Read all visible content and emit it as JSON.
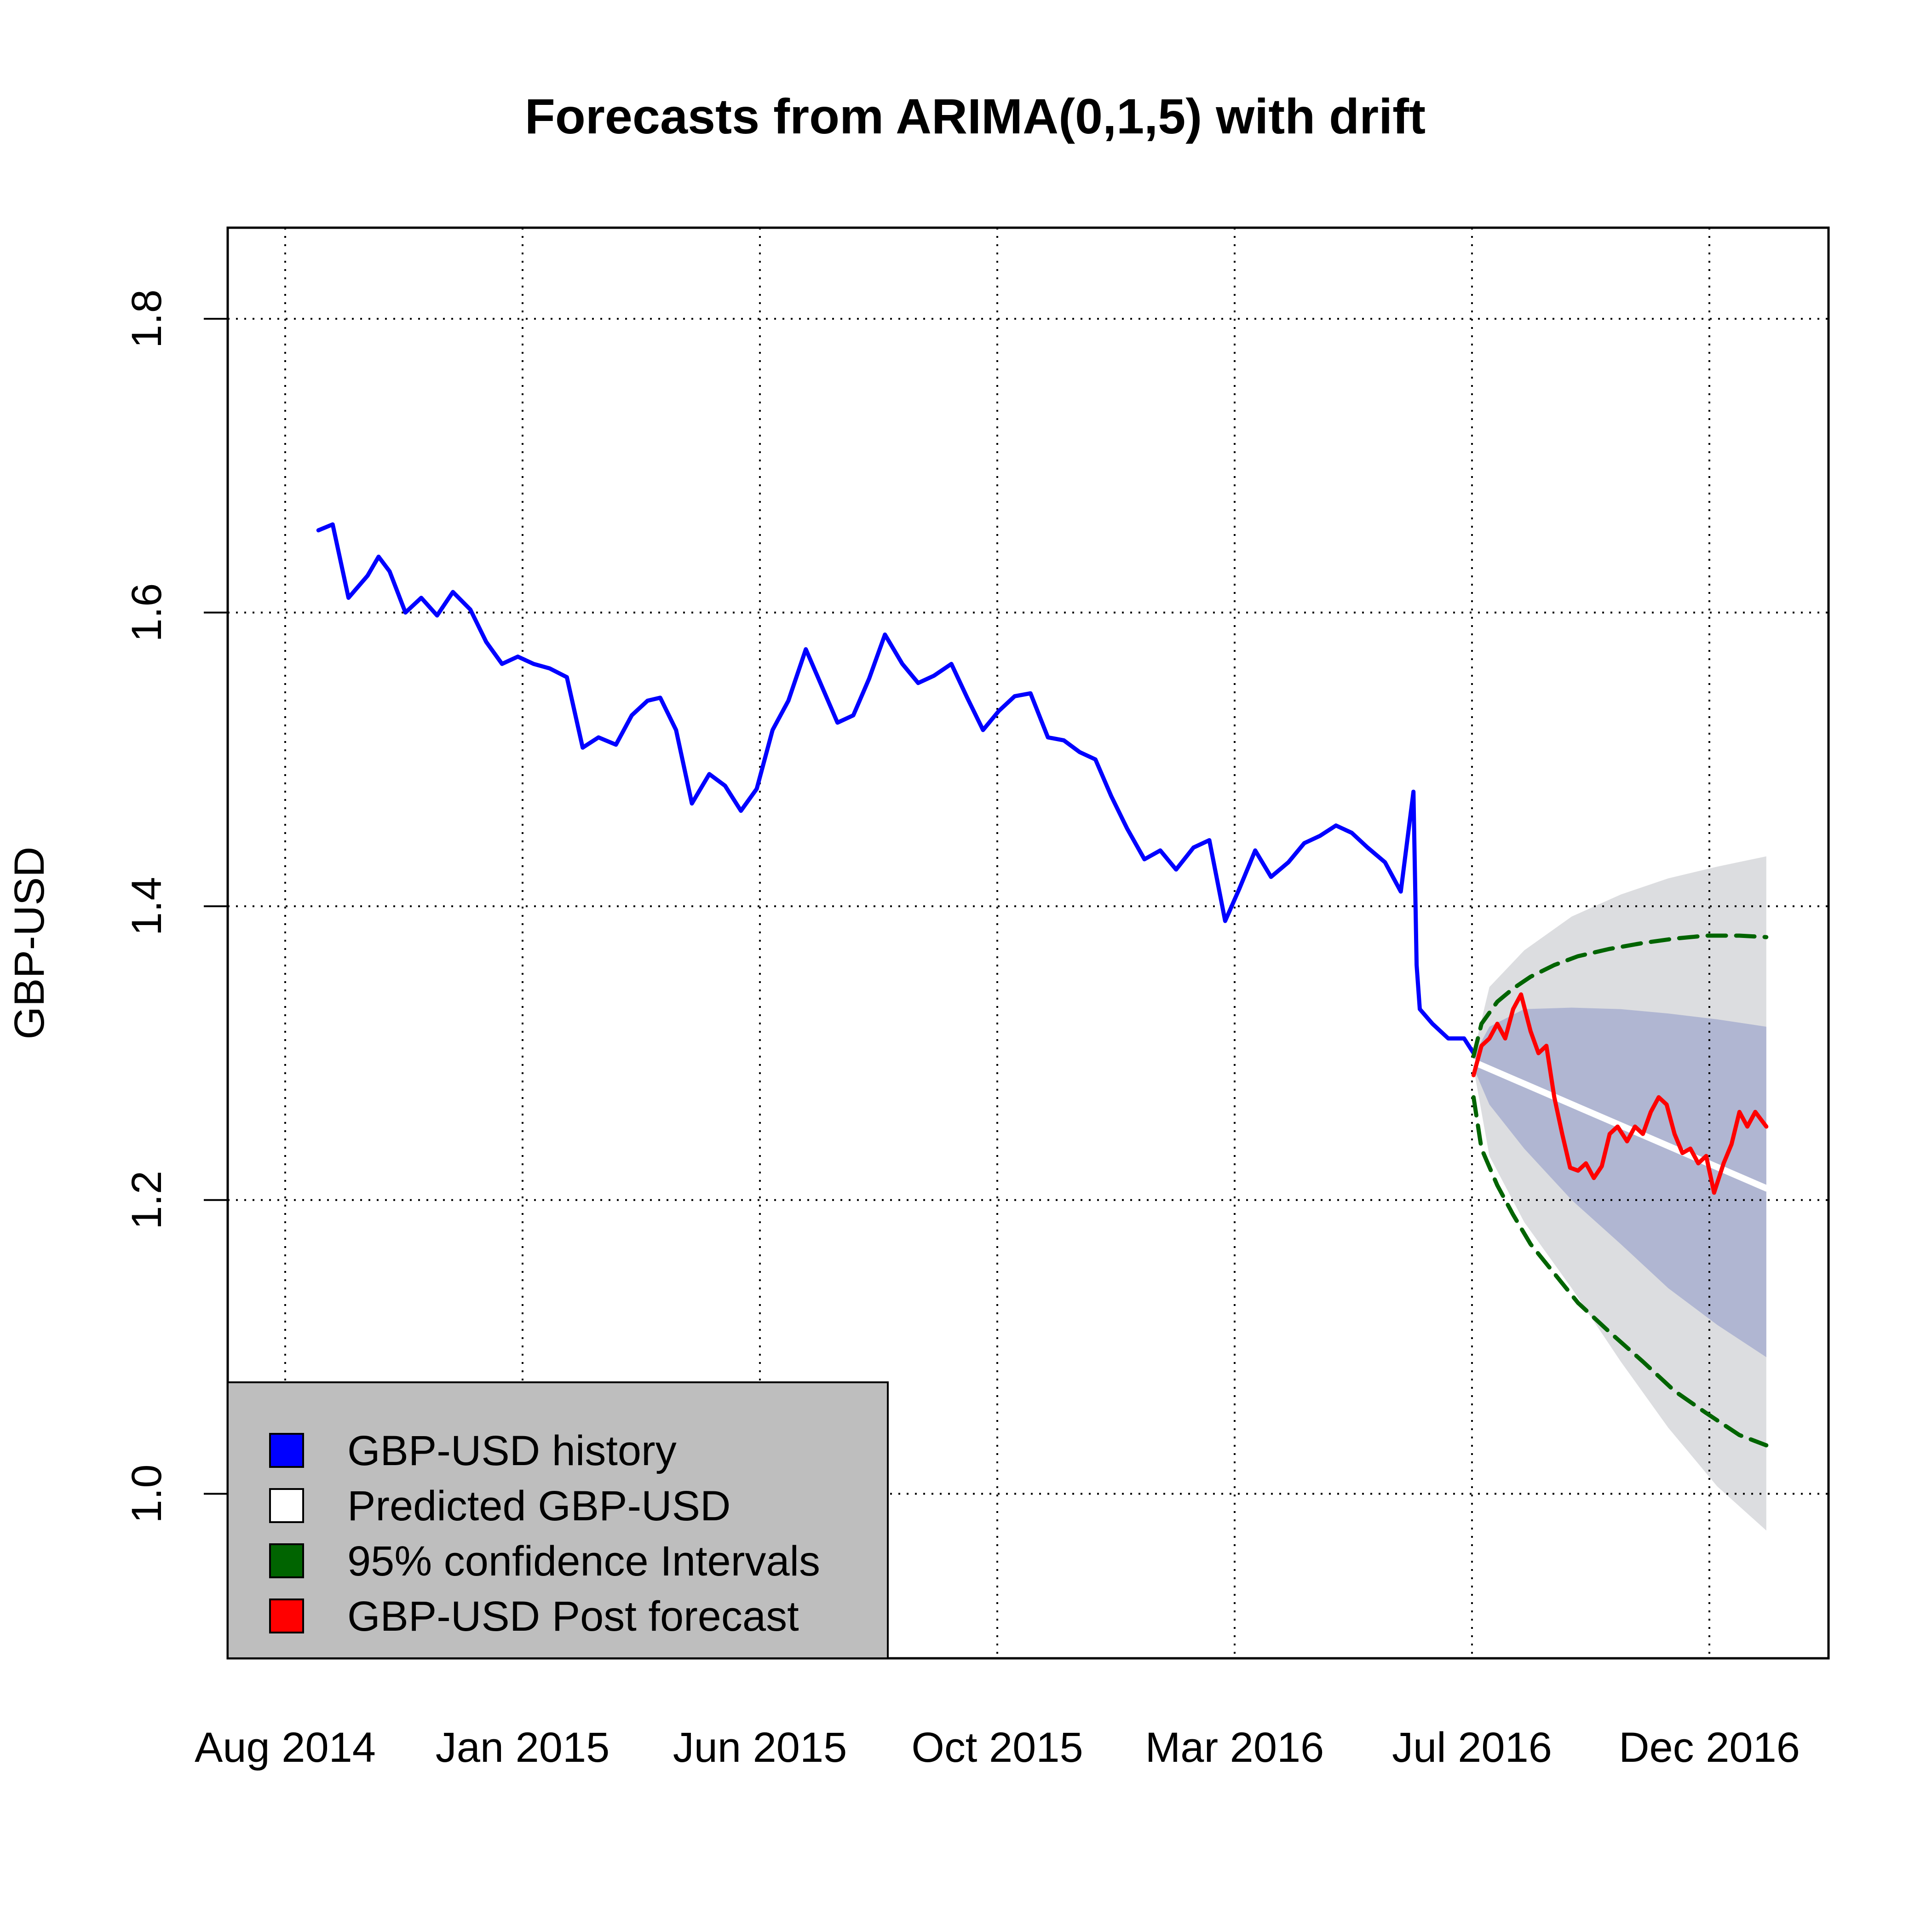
{
  "chart_data": {
    "type": "line",
    "title": "Forecasts from ARIMA(0,1,5) with drift",
    "xlabel": "",
    "ylabel": "GBP-USD",
    "ylim": [
      0.888,
      1.862
    ],
    "yticks": [
      1.0,
      1.2,
      1.4,
      1.6,
      1.8
    ],
    "ytick_labels": [
      "1.0",
      "1.2",
      "1.4",
      "1.6",
      "1.8"
    ],
    "x_tick_labels": [
      "Aug 2014",
      "Jan 2015",
      "Jun 2015",
      "Oct 2015",
      "Mar 2016",
      "Jul 2016",
      "Dec 2016"
    ],
    "grid": true,
    "legend_placement": "bottom-left",
    "legend": [
      {
        "label": "GBP-USD  history",
        "color": "#0000ff"
      },
      {
        "label": "Predicted  GBP-USD",
        "color": "#ffffff"
      },
      {
        "label": "95% confidence Intervals",
        "color": "#006400"
      },
      {
        "label": "GBP-USD  Post forecast",
        "color": "#ff0000"
      }
    ],
    "colors": {
      "history": "#0000ff",
      "predicted": "#ffffff",
      "ci95": "#006400",
      "post_forecast": "#ff0000",
      "band95": "#dcdde0",
      "band80": "#b0b6d2",
      "legend_bg": "#bebebe"
    },
    "series": [
      {
        "name": "GBP-USD  history",
        "x": [
          "2014-08-01",
          "2014-08-10",
          "2014-08-20",
          "2014-09-01",
          "2014-09-08",
          "2014-09-15",
          "2014-09-25",
          "2014-10-05",
          "2014-10-15",
          "2014-10-25",
          "2014-11-05",
          "2014-11-15",
          "2014-11-25",
          "2014-12-05",
          "2014-12-15",
          "2014-12-25",
          "2015-01-05",
          "2015-01-15",
          "2015-01-25",
          "2015-02-05",
          "2015-02-15",
          "2015-02-25",
          "2015-03-05",
          "2015-03-15",
          "2015-03-25",
          "2015-04-05",
          "2015-04-15",
          "2015-04-25",
          "2015-05-05",
          "2015-05-15",
          "2015-05-25",
          "2015-06-05",
          "2015-06-15",
          "2015-06-25",
          "2015-07-05",
          "2015-07-15",
          "2015-07-25",
          "2015-08-05",
          "2015-08-15",
          "2015-08-25",
          "2015-09-05",
          "2015-09-15",
          "2015-09-25",
          "2015-10-05",
          "2015-10-15",
          "2015-10-25",
          "2015-11-05",
          "2015-11-15",
          "2015-11-25",
          "2015-12-05",
          "2015-12-15",
          "2015-12-25",
          "2016-01-05",
          "2016-01-15",
          "2016-01-25",
          "2016-02-05",
          "2016-02-15",
          "2016-02-25",
          "2016-03-05",
          "2016-03-15",
          "2016-03-25",
          "2016-04-05",
          "2016-04-15",
          "2016-04-25",
          "2016-05-05",
          "2016-05-15",
          "2016-05-25",
          "2016-06-05",
          "2016-06-15",
          "2016-06-23",
          "2016-06-25",
          "2016-06-27",
          "2016-07-05",
          "2016-07-15",
          "2016-07-25",
          "2016-07-31"
        ],
        "y": [
          1.656,
          1.66,
          1.61,
          1.625,
          1.638,
          1.628,
          1.6,
          1.61,
          1.598,
          1.614,
          1.602,
          1.58,
          1.565,
          1.57,
          1.565,
          1.562,
          1.556,
          1.508,
          1.515,
          1.51,
          1.53,
          1.54,
          1.542,
          1.52,
          1.47,
          1.49,
          1.482,
          1.465,
          1.48,
          1.52,
          1.54,
          1.575,
          1.55,
          1.525,
          1.53,
          1.555,
          1.585,
          1.565,
          1.552,
          1.557,
          1.565,
          1.542,
          1.52,
          1.533,
          1.543,
          1.545,
          1.515,
          1.513,
          1.505,
          1.5,
          1.475,
          1.453,
          1.432,
          1.438,
          1.425,
          1.44,
          1.445,
          1.39,
          1.412,
          1.438,
          1.42,
          1.43,
          1.443,
          1.448,
          1.455,
          1.45,
          1.44,
          1.43,
          1.41,
          1.478,
          1.36,
          1.33,
          1.32,
          1.31,
          1.31,
          1.3
        ]
      },
      {
        "name": "Predicted  GBP-USD",
        "x": [
          "2016-07-31",
          "2017-02-01"
        ],
        "y": [
          1.294,
          1.208
        ]
      },
      {
        "name": "GBP-USD  Post forecast",
        "x": [
          "2016-07-31",
          "2016-08-05",
          "2016-08-10",
          "2016-08-15",
          "2016-08-20",
          "2016-08-25",
          "2016-08-30",
          "2016-09-05",
          "2016-09-10",
          "2016-09-15",
          "2016-09-20",
          "2016-09-25",
          "2016-09-30",
          "2016-10-05",
          "2016-10-10",
          "2016-10-15",
          "2016-10-20",
          "2016-10-25",
          "2016-10-30",
          "2016-11-05",
          "2016-11-10",
          "2016-11-15",
          "2016-11-20",
          "2016-11-25",
          "2016-11-30",
          "2016-12-05",
          "2016-12-10",
          "2016-12-15",
          "2016-12-20",
          "2016-12-25",
          "2016-12-30",
          "2017-01-05",
          "2017-01-10",
          "2017-01-15",
          "2017-01-20",
          "2017-01-25",
          "2017-02-01"
        ],
        "y": [
          1.285,
          1.305,
          1.31,
          1.32,
          1.31,
          1.33,
          1.34,
          1.315,
          1.3,
          1.305,
          1.27,
          1.245,
          1.222,
          1.22,
          1.225,
          1.215,
          1.223,
          1.245,
          1.25,
          1.24,
          1.25,
          1.245,
          1.26,
          1.27,
          1.265,
          1.245,
          1.232,
          1.235,
          1.225,
          1.23,
          1.205,
          1.225,
          1.238,
          1.26,
          1.25,
          1.26,
          1.25
        ]
      },
      {
        "name": "95% confidence Intervals",
        "x": [
          "2016-07-31",
          "2016-08-05",
          "2016-08-15",
          "2016-08-25",
          "2016-09-05",
          "2016-09-20",
          "2016-10-05",
          "2016-10-25",
          "2016-11-15",
          "2016-12-05",
          "2016-12-25",
          "2017-01-15",
          "2017-02-01"
        ],
        "upper": [
          1.298,
          1.32,
          1.335,
          1.344,
          1.352,
          1.36,
          1.366,
          1.371,
          1.375,
          1.378,
          1.38,
          1.38,
          1.379
        ],
        "lower": [
          1.27,
          1.235,
          1.21,
          1.19,
          1.17,
          1.15,
          1.13,
          1.11,
          1.09,
          1.07,
          1.055,
          1.04,
          1.033
        ]
      }
    ],
    "bands": [
      {
        "level": "95%",
        "x": [
          "2016-07-31",
          "2016-08-10",
          "2016-09-01",
          "2016-10-01",
          "2016-11-01",
          "2016-12-01",
          "2017-01-01",
          "2017-02-01"
        ],
        "upper": [
          1.3,
          1.345,
          1.37,
          1.393,
          1.408,
          1.419,
          1.427,
          1.434
        ],
        "lower": [
          1.29,
          1.23,
          1.185,
          1.14,
          1.09,
          1.045,
          1.005,
          0.975
        ]
      },
      {
        "level": "80%",
        "x": [
          "2016-07-31",
          "2016-08-10",
          "2016-09-01",
          "2016-10-01",
          "2016-11-01",
          "2016-12-01",
          "2017-01-01",
          "2017-02-01"
        ],
        "upper": [
          1.298,
          1.318,
          1.33,
          1.331,
          1.33,
          1.327,
          1.323,
          1.318
        ],
        "lower": [
          1.29,
          1.265,
          1.235,
          1.2,
          1.17,
          1.14,
          1.115,
          1.093
        ]
      }
    ]
  }
}
